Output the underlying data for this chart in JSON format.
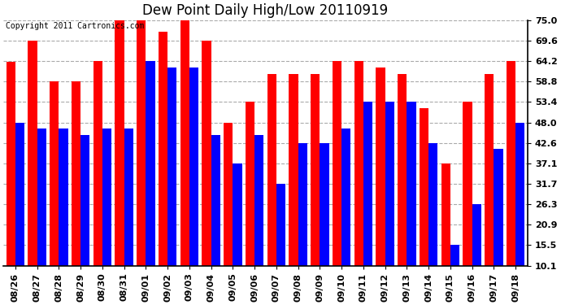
{
  "title": "Dew Point Daily High/Low 20110919",
  "copyright": "Copyright 2011 Cartronics.com",
  "dates": [
    "08/26",
    "08/27",
    "08/28",
    "08/29",
    "08/30",
    "08/31",
    "09/01",
    "09/02",
    "09/03",
    "09/04",
    "09/05",
    "09/06",
    "09/07",
    "09/08",
    "09/09",
    "09/10",
    "09/11",
    "09/12",
    "09/13",
    "09/14",
    "09/15",
    "09/16",
    "09/17",
    "09/18"
  ],
  "highs": [
    64.0,
    69.6,
    58.8,
    58.8,
    64.2,
    75.0,
    75.0,
    72.0,
    75.2,
    69.6,
    48.0,
    53.4,
    60.8,
    60.8,
    60.8,
    64.2,
    64.2,
    62.6,
    60.8,
    51.8,
    37.1,
    53.4,
    60.8,
    64.2
  ],
  "lows": [
    48.0,
    46.4,
    46.4,
    44.6,
    46.4,
    46.4,
    64.2,
    62.6,
    62.6,
    44.6,
    37.1,
    44.6,
    31.7,
    42.6,
    42.6,
    46.4,
    53.4,
    53.4,
    53.4,
    42.6,
    15.5,
    26.3,
    41.0,
    48.0
  ],
  "high_color": "#ff0000",
  "low_color": "#0000ff",
  "bg_color": "#ffffff",
  "grid_color": "#aaaaaa",
  "ylim_min": 10.1,
  "ylim_max": 75.0,
  "yticks": [
    10.1,
    15.5,
    20.9,
    26.3,
    31.7,
    37.1,
    42.6,
    48.0,
    53.4,
    58.8,
    64.2,
    69.6,
    75.0
  ],
  "bar_width": 0.42,
  "title_fontsize": 12,
  "tick_fontsize": 8,
  "copyright_fontsize": 7
}
